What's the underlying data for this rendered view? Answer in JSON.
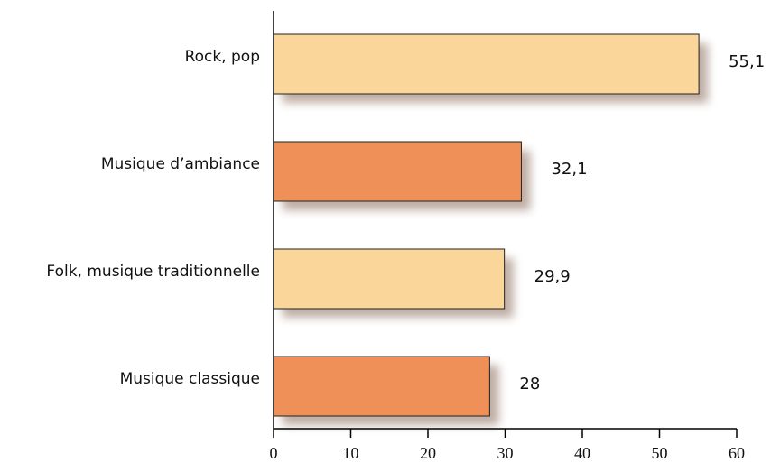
{
  "chart_data": {
    "type": "hbar",
    "categories": [
      "Rock, pop",
      "Musique d’ambiance",
      "Folk, musique traditionnelle",
      "Musique classique"
    ],
    "values": [
      55.1,
      32.1,
      29.9,
      28
    ],
    "value_labels": [
      "55,1",
      "32,1",
      "29,9",
      "28"
    ],
    "colors": [
      "#fad69b",
      "#ef9058",
      "#fad69b",
      "#ef9058"
    ],
    "xlim": [
      0,
      60
    ],
    "xticks": [
      0,
      10,
      20,
      30,
      40,
      50,
      60
    ]
  }
}
